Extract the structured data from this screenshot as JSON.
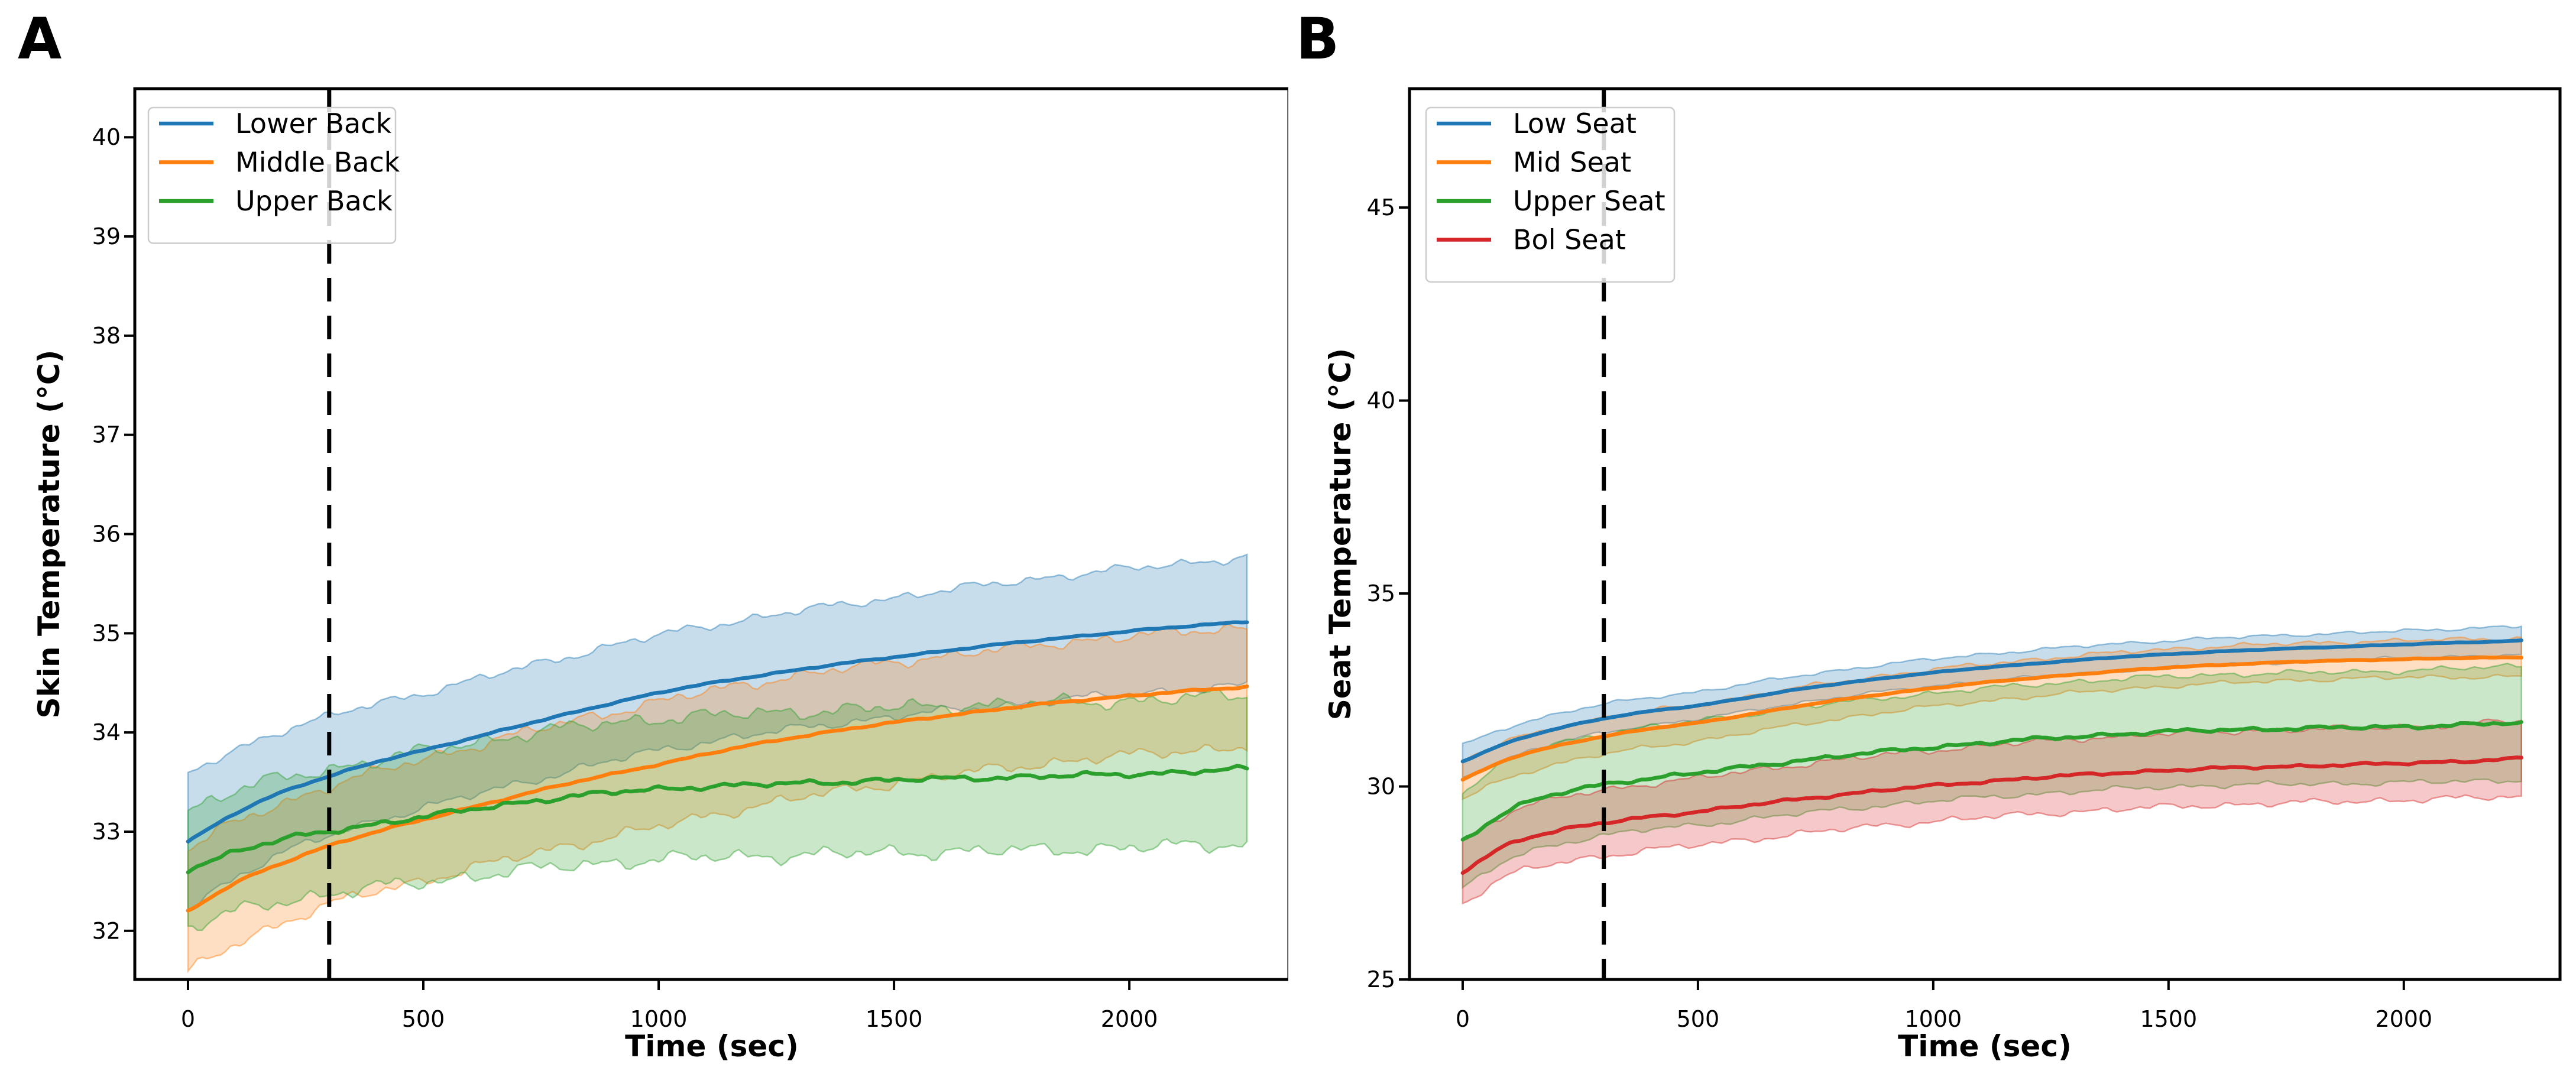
{
  "figure_background": "#ffffff",
  "chart_data": [
    {
      "type": "line",
      "panel_label": "A",
      "xlabel": "Time (sec)",
      "ylabel": "Skin Temperature (°C)",
      "x_ticks": [
        0,
        500,
        1000,
        1500,
        2000
      ],
      "x_tick_labels": [
        "0",
        "500",
        "1000",
        "1500",
        "2000"
      ],
      "y_ticks": [
        32,
        33,
        34,
        35,
        36,
        37,
        38,
        39,
        40
      ],
      "y_tick_labels": [
        "32",
        "33",
        "34",
        "35",
        "36",
        "37",
        "38",
        "39",
        "40"
      ],
      "xlim": [
        -113,
        2339
      ],
      "ylim": [
        31.51,
        40.49
      ],
      "grid": false,
      "legend_position": "upper left",
      "vline": {
        "x": 300,
        "style": "dashed",
        "color": "#000000"
      },
      "x": [
        0,
        100,
        200,
        300,
        400,
        500,
        750,
        1000,
        1250,
        1500,
        1750,
        2000,
        2250
      ],
      "series": [
        {
          "name": "Lower Back",
          "color": "#1f77b4",
          "values": [
            32.9,
            33.18,
            33.4,
            33.56,
            33.7,
            33.82,
            34.12,
            34.4,
            34.6,
            34.76,
            34.9,
            35.02,
            35.12
          ],
          "band_halfwidth": [
            0.68,
            0.64,
            0.62,
            0.6,
            0.59,
            0.58,
            0.58,
            0.58,
            0.59,
            0.6,
            0.62,
            0.63,
            0.65
          ]
        },
        {
          "name": "Middle Back",
          "color": "#ff7f0e",
          "values": [
            32.2,
            32.48,
            32.68,
            32.86,
            33.0,
            33.12,
            33.42,
            33.68,
            33.92,
            34.1,
            34.25,
            34.37,
            34.46
          ],
          "band_halfwidth": [
            0.62,
            0.61,
            0.6,
            0.6,
            0.6,
            0.61,
            0.62,
            0.63,
            0.62,
            0.61,
            0.6,
            0.6,
            0.6
          ]
        },
        {
          "name": "Upper Back",
          "color": "#2ca02c",
          "values": [
            32.62,
            32.8,
            32.92,
            33.0,
            33.08,
            33.15,
            33.32,
            33.43,
            33.48,
            33.52,
            33.55,
            33.58,
            33.63
          ],
          "band_halfwidth": [
            0.6,
            0.61,
            0.62,
            0.63,
            0.64,
            0.66,
            0.69,
            0.71,
            0.72,
            0.73,
            0.74,
            0.74,
            0.75
          ]
        }
      ]
    },
    {
      "type": "line",
      "panel_label": "B",
      "xlabel": "Time (sec)",
      "ylabel": "Seat Temperature (°C)",
      "x_ticks": [
        0,
        500,
        1000,
        1500,
        2000
      ],
      "x_tick_labels": [
        "0",
        "500",
        "1000",
        "1500",
        "2000"
      ],
      "y_ticks": [
        25,
        30,
        35,
        40,
        45
      ],
      "y_tick_labels": [
        "25",
        "30",
        "35",
        "40",
        "45"
      ],
      "xlim": [
        -113,
        2332
      ],
      "ylim": [
        25.0,
        48.08
      ],
      "grid": false,
      "legend_position": "upper left",
      "vline": {
        "x": 300,
        "style": "dashed",
        "color": "#000000"
      },
      "x": [
        0,
        100,
        200,
        300,
        400,
        500,
        750,
        1000,
        1250,
        1500,
        1750,
        2000,
        2250
      ],
      "series": [
        {
          "name": "Low Seat",
          "color": "#1f77b4",
          "values": [
            30.65,
            31.15,
            31.5,
            31.76,
            31.95,
            32.1,
            32.58,
            32.95,
            33.22,
            33.43,
            33.57,
            33.68,
            33.78
          ],
          "band_halfwidth": [
            0.42,
            0.4,
            0.38,
            0.37,
            0.36,
            0.36,
            0.35,
            0.35,
            0.35,
            0.35,
            0.35,
            0.35,
            0.38
          ]
        },
        {
          "name": "Mid Seat",
          "color": "#ff7f0e",
          "values": [
            30.18,
            30.72,
            31.05,
            31.3,
            31.5,
            31.65,
            32.15,
            32.55,
            32.85,
            33.08,
            33.22,
            33.3,
            33.35
          ],
          "band_halfwidth": [
            0.5,
            0.48,
            0.47,
            0.47,
            0.47,
            0.47,
            0.48,
            0.48,
            0.48,
            0.48,
            0.48,
            0.48,
            0.5
          ]
        },
        {
          "name": "Upper Seat",
          "color": "#2ca02c",
          "values": [
            28.6,
            29.4,
            29.8,
            30.05,
            30.22,
            30.35,
            30.72,
            31.02,
            31.25,
            31.42,
            31.5,
            31.55,
            31.65
          ],
          "band_halfwidth": [
            1.25,
            1.28,
            1.3,
            1.32,
            1.33,
            1.35,
            1.38,
            1.4,
            1.42,
            1.43,
            1.44,
            1.45,
            1.48
          ]
        },
        {
          "name": "Bol Seat",
          "color": "#d62728",
          "values": [
            27.78,
            28.52,
            28.85,
            29.05,
            29.22,
            29.35,
            29.72,
            30.02,
            30.25,
            30.42,
            30.52,
            30.6,
            30.72
          ],
          "band_halfwidth": [
            0.8,
            0.82,
            0.84,
            0.85,
            0.86,
            0.87,
            0.9,
            0.92,
            0.94,
            0.95,
            0.95,
            0.95,
            0.98
          ]
        }
      ]
    }
  ]
}
